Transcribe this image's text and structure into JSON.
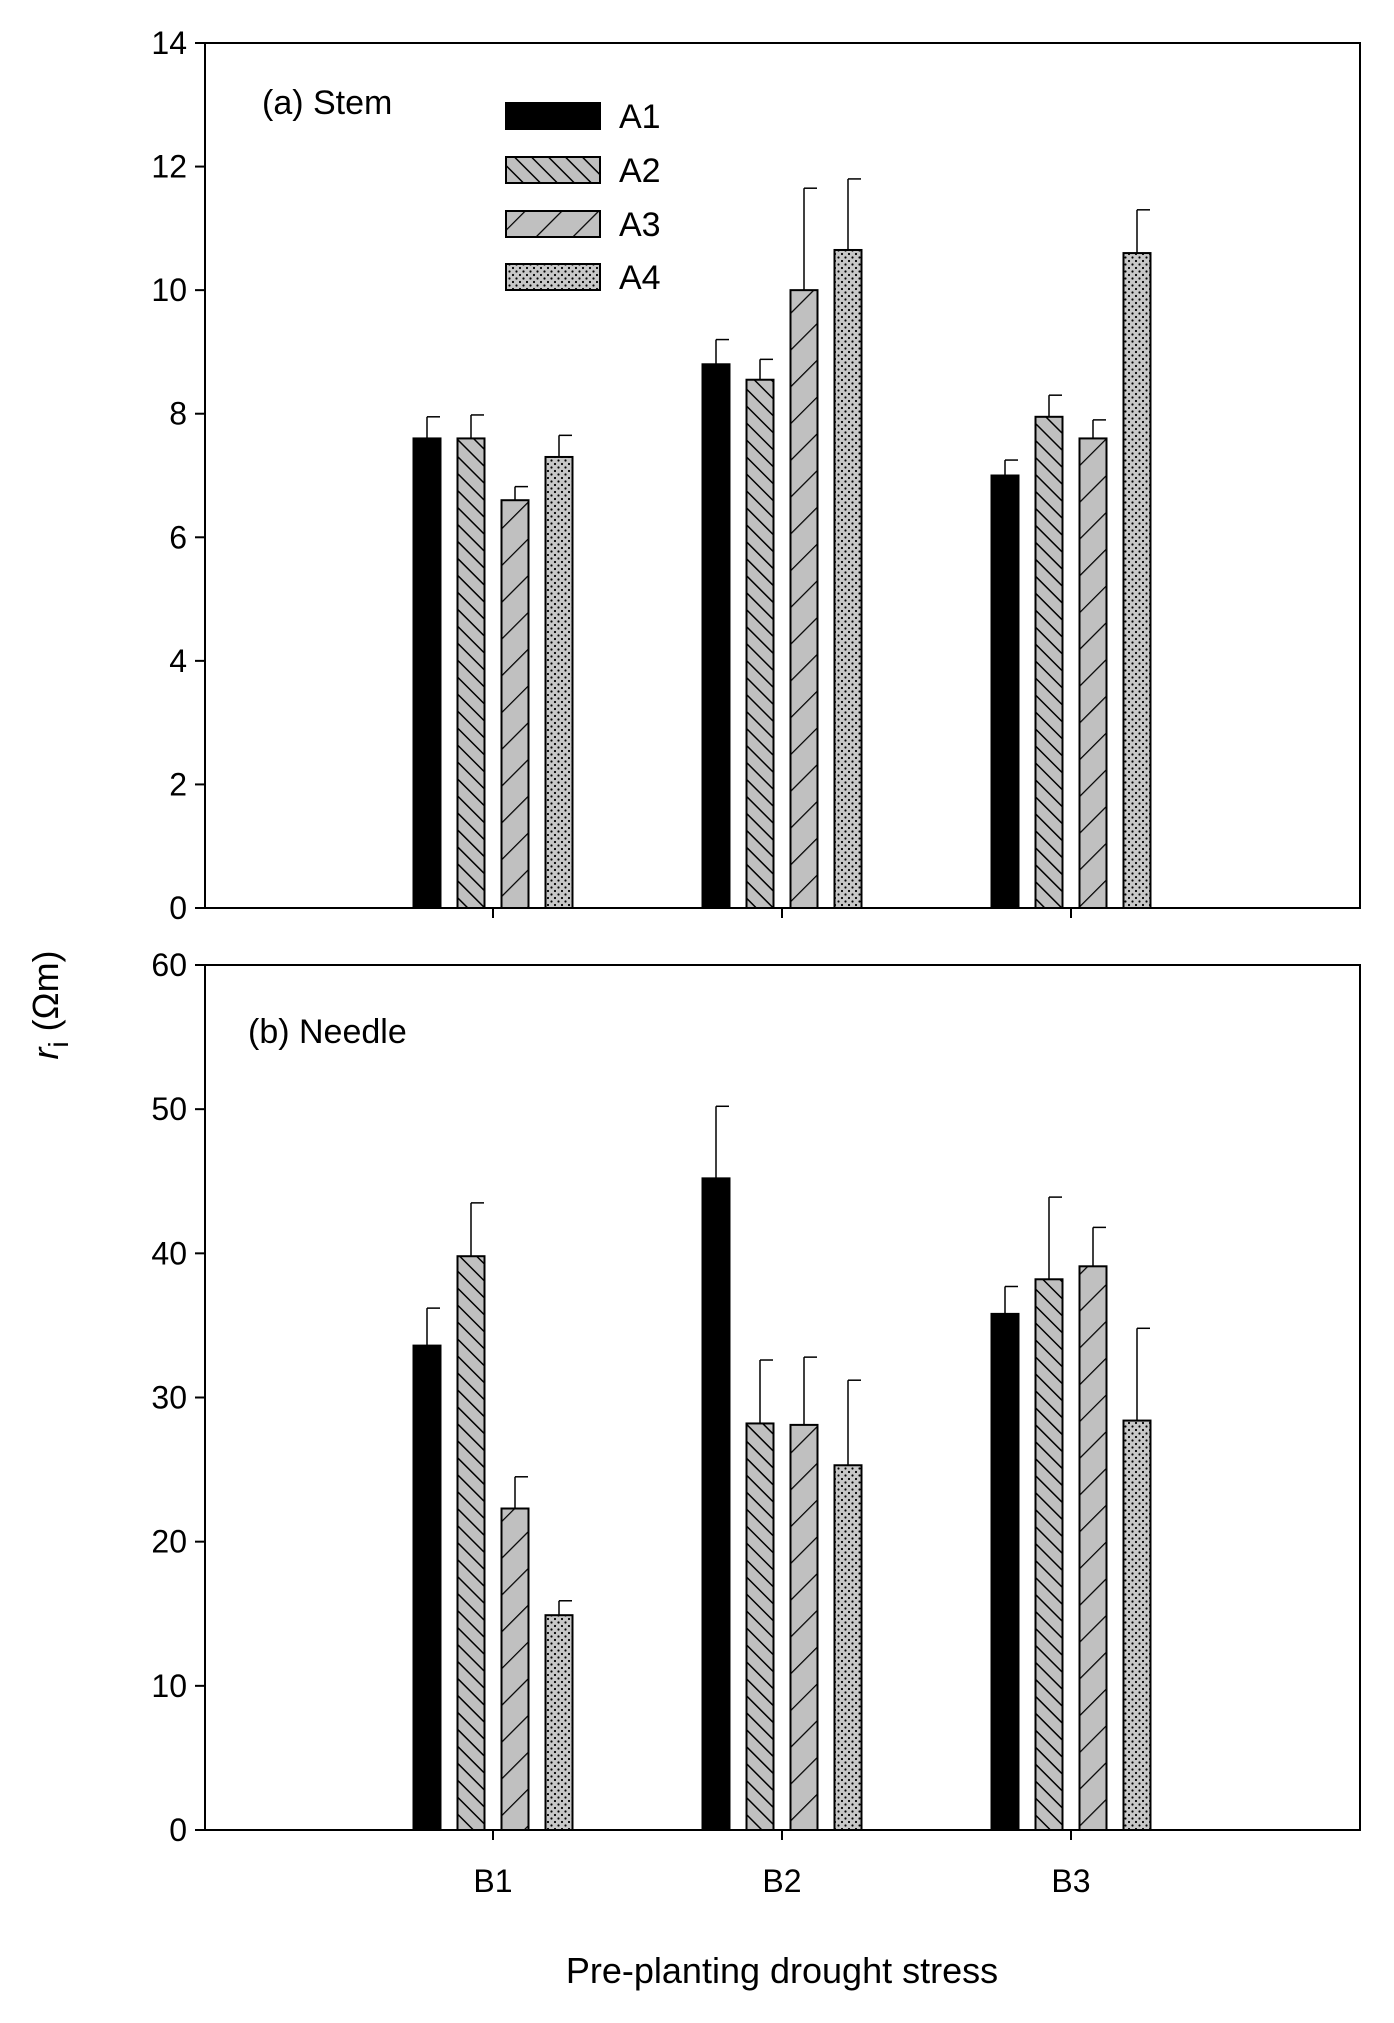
{
  "chart_data": [
    {
      "type": "bar",
      "title": "(a) Stem",
      "categories": [
        "B1",
        "B2",
        "B3"
      ],
      "series": [
        {
          "name": "A1",
          "values": [
            7.6,
            8.8,
            7.0
          ],
          "errors": [
            0.35,
            0.4,
            0.25
          ]
        },
        {
          "name": "A2",
          "values": [
            7.6,
            8.55,
            7.95
          ],
          "errors": [
            0.38,
            0.33,
            0.35
          ]
        },
        {
          "name": "A3",
          "values": [
            6.6,
            10.0,
            7.6
          ],
          "errors": [
            0.22,
            1.65,
            0.3
          ]
        },
        {
          "name": "A4",
          "values": [
            7.3,
            10.65,
            10.6
          ],
          "errors": [
            0.35,
            1.15,
            0.7
          ]
        }
      ],
      "ylim": [
        0,
        14
      ],
      "yticks": [
        0,
        2,
        4,
        6,
        8,
        10,
        12,
        14
      ],
      "xlabel": "",
      "ylabel": ""
    },
    {
      "type": "bar",
      "title": "(b) Needle",
      "categories": [
        "B1",
        "B2",
        "B3"
      ],
      "series": [
        {
          "name": "A1",
          "values": [
            33.6,
            45.2,
            35.8
          ],
          "errors": [
            2.6,
            5.0,
            1.9
          ]
        },
        {
          "name": "A2",
          "values": [
            39.8,
            28.2,
            38.2
          ],
          "errors": [
            3.7,
            4.4,
            5.7
          ]
        },
        {
          "name": "A3",
          "values": [
            22.3,
            28.1,
            39.1
          ],
          "errors": [
            2.2,
            4.7,
            2.7
          ]
        },
        {
          "name": "A4",
          "values": [
            14.9,
            25.3,
            28.4
          ],
          "errors": [
            1.0,
            5.9,
            6.4
          ]
        }
      ],
      "ylim": [
        0,
        60
      ],
      "yticks": [
        0,
        10,
        20,
        30,
        40,
        50,
        60
      ],
      "xlabel": "Pre-planting drought stress",
      "ylabel": ""
    }
  ],
  "shared": {
    "ylabel_symbol": "r",
    "ylabel_subscript": "i",
    "ylabel_unit": "(Ωm)"
  },
  "legend": {
    "placement": "top-left inside panel (a)",
    "entries": [
      "A1",
      "A2",
      "A3",
      "A4"
    ]
  },
  "series_styles": [
    "solid-black",
    "diagonal-hatch-forward",
    "diagonal-hatch-backward",
    "dotted-gray"
  ]
}
